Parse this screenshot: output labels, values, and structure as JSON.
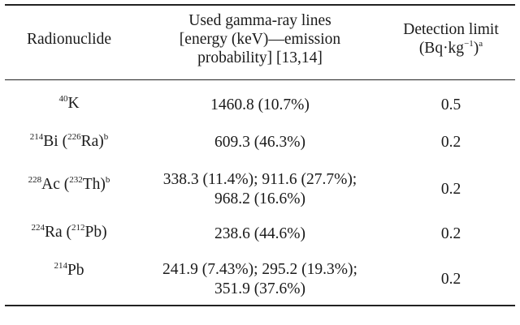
{
  "table": {
    "headers": {
      "radionuclide": "Radionuclide",
      "gamma_lines": [
        "Used gamma-ray lines",
        "[energy (keV)—emission",
        "probability] [13,14]"
      ],
      "detection_limit_line1": "Detection limit",
      "detection_limit_line2": "(Bq·kg",
      "detection_limit_exp": "−1",
      "detection_limit_close": ")",
      "detection_limit_note": "a"
    },
    "rows": [
      {
        "nuclide": {
          "mass": "40",
          "symbol": "K"
        },
        "lines": [
          "1460.8 (10.7%)"
        ],
        "limit": "0.5"
      },
      {
        "nuclide": {
          "mass": "214",
          "symbol": "Bi (",
          "parent_mass": "226",
          "parent_symbol": "Ra)",
          "note": "b"
        },
        "lines": [
          "609.3 (46.3%)"
        ],
        "limit": "0.2"
      },
      {
        "nuclide": {
          "mass": "228",
          "symbol": "Ac (",
          "parent_mass": "232",
          "parent_symbol": "Th)",
          "note": "b"
        },
        "lines": [
          "338.3 (11.4%); 911.6 (27.7%);",
          "968.2 (16.6%)"
        ],
        "limit": "0.2"
      },
      {
        "nuclide": {
          "mass": "224",
          "symbol": "Ra (",
          "parent_mass": "212",
          "parent_symbol": "Pb)"
        },
        "lines": [
          "238.6 (44.6%)"
        ],
        "limit": "0.2"
      },
      {
        "nuclide": {
          "mass": "214",
          "symbol": "Pb"
        },
        "lines": [
          "241.9 (7.43%); 295.2 (19.3%);",
          "351.9 (37.6%)"
        ],
        "limit": "0.2"
      }
    ]
  }
}
